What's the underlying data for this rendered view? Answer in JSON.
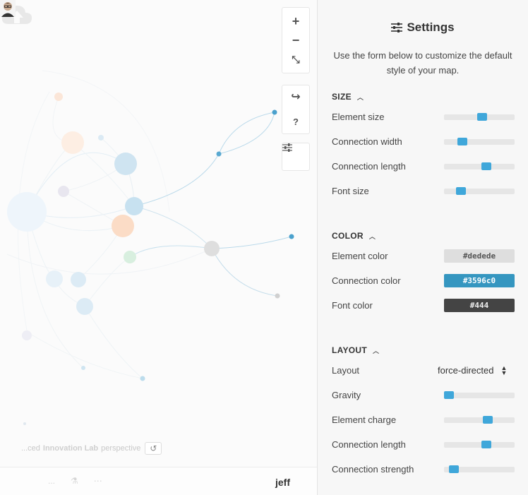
{
  "map": {
    "toolbar": {
      "zoom_in": "+",
      "zoom_out": "−",
      "fit": "⤡",
      "share": "↪",
      "help": "?",
      "settings": "☰"
    },
    "perspective": {
      "prefix": "...ced",
      "name": "Innovation Lab",
      "suffix": "perspective"
    },
    "bottom_bar": {
      "icons": [
        "...",
        "⚗",
        "⋯"
      ]
    },
    "user": "jeff"
  },
  "settings": {
    "title": "Settings",
    "description": "Use the form below to customize the default style of your map.",
    "sections": {
      "size": {
        "label": "SIZE",
        "rows": [
          {
            "label": "Element size",
            "value": 0.55
          },
          {
            "label": "Connection width",
            "value": 0.22
          },
          {
            "label": "Connection length",
            "value": 0.62
          },
          {
            "label": "Font size",
            "value": 0.2
          }
        ]
      },
      "color": {
        "label": "COLOR",
        "rows": [
          {
            "label": "Element color",
            "value": "#dedede",
            "bg": "#dedede",
            "fg": "#555555"
          },
          {
            "label": "Connection color",
            "value": "#3596c0",
            "bg": "#3596c0",
            "fg": "#ffffff"
          },
          {
            "label": "Font color",
            "value": "#444",
            "bg": "#444444",
            "fg": "#eeeeee"
          }
        ]
      },
      "layout": {
        "label": "LAYOUT",
        "layout_label": "Layout",
        "layout_value": "force-directed",
        "rows": [
          {
            "label": "Gravity",
            "value": 0.0
          },
          {
            "label": "Element charge",
            "value": 0.64
          },
          {
            "label": "Connection length",
            "value": 0.62
          },
          {
            "label": "Connection strength",
            "value": 0.08
          }
        ]
      }
    }
  },
  "colors": {
    "accent": "#3fa7da",
    "connection": "#3596c0"
  }
}
